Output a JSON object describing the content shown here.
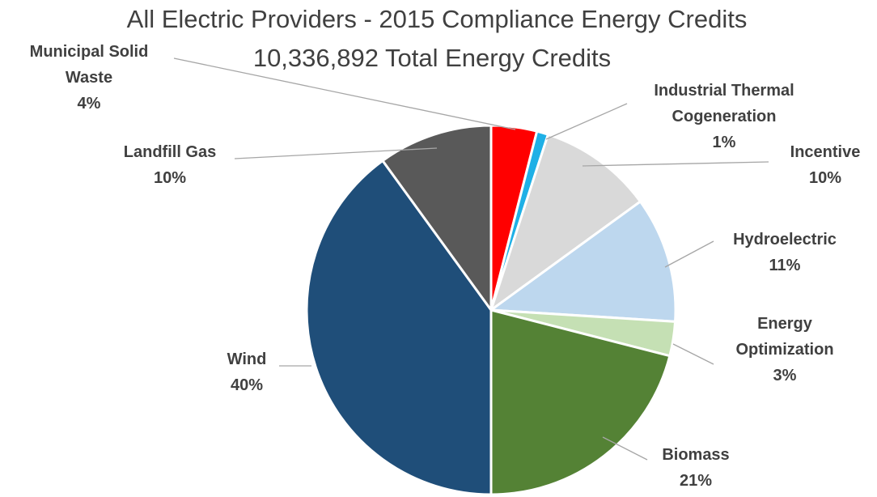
{
  "chart_data": {
    "type": "pie",
    "title": "All Electric Providers - 2015 Compliance Energy Credits",
    "subtitle": "10,336,892 Total Energy Credits",
    "categories": [
      "Municipal Solid Waste",
      "Industrial Thermal Cogeneration",
      "Incentive",
      "Hydroelectric",
      "Energy Optimization",
      "Biomass",
      "Wind",
      "Landfill Gas"
    ],
    "values": [
      4,
      1,
      10,
      11,
      3,
      21,
      40,
      10
    ],
    "value_labels": [
      "4%",
      "1%",
      "10%",
      "11%",
      "3%",
      "21%",
      "40%",
      "10%"
    ],
    "colors": [
      "#ff0000",
      "#1fb0e6",
      "#d9d9d9",
      "#bdd7ee",
      "#c5e0b4",
      "#548235",
      "#1f4e79",
      "#595959"
    ]
  }
}
